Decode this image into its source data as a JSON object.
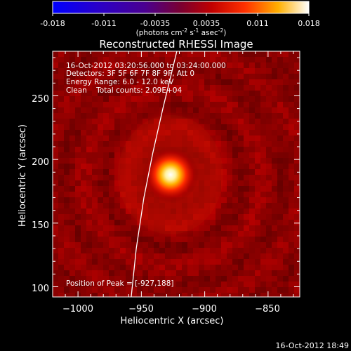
{
  "colorbar": {
    "ticks": [
      "-0.018",
      "-0.011",
      "-0.0035",
      "0.0035",
      "0.011",
      "0.018"
    ],
    "unit_main": "(photons cm",
    "unit_sup1": "-2",
    "unit_mid": " s",
    "unit_sup2": "-1",
    "unit_mid2": " asec",
    "unit_sup3": "-2",
    "unit_end": ")",
    "colormap": "black-purple-red-orange-yellow-white (IDL color table 3-like)",
    "range": [
      -0.018,
      0.018
    ]
  },
  "chart_data": {
    "type": "heatmap",
    "title": "Reconstructed RHESSI Image",
    "xlabel": "Heliocentric X (arcsec)",
    "ylabel": "Heliocentric Y (arcsec)",
    "xlim": [
      -1020,
      -825
    ],
    "ylim": [
      92,
      285
    ],
    "x_ticks": [
      -1000,
      -950,
      -900,
      -850
    ],
    "y_ticks": [
      100,
      150,
      200,
      250
    ],
    "x_tick_labels": [
      "−1000",
      "−950",
      "−900",
      "−850"
    ],
    "y_tick_labels": [
      "100",
      "150",
      "200",
      "250"
    ],
    "peak": {
      "x": -927,
      "y": 188
    },
    "limb_line": [
      [
        -958,
        92
      ],
      [
        -954,
        130
      ],
      [
        -948,
        170
      ],
      [
        -941,
        205
      ],
      [
        -933,
        240
      ],
      [
        -922,
        285
      ]
    ],
    "info": [
      "16-Oct-2012 03:20:56.000 to 03:24:00.000",
      "Detectors: 3F 5F 6F 7F 8F 9F, Att 0",
      "Energy Range: 6.0 - 12.0 keV",
      "Clean    Total counts: 2.09E+04"
    ],
    "peak_label": "Position of Peak = [-927,188]"
  },
  "footer": {
    "timestamp": "16-Oct-2012 18:49"
  }
}
